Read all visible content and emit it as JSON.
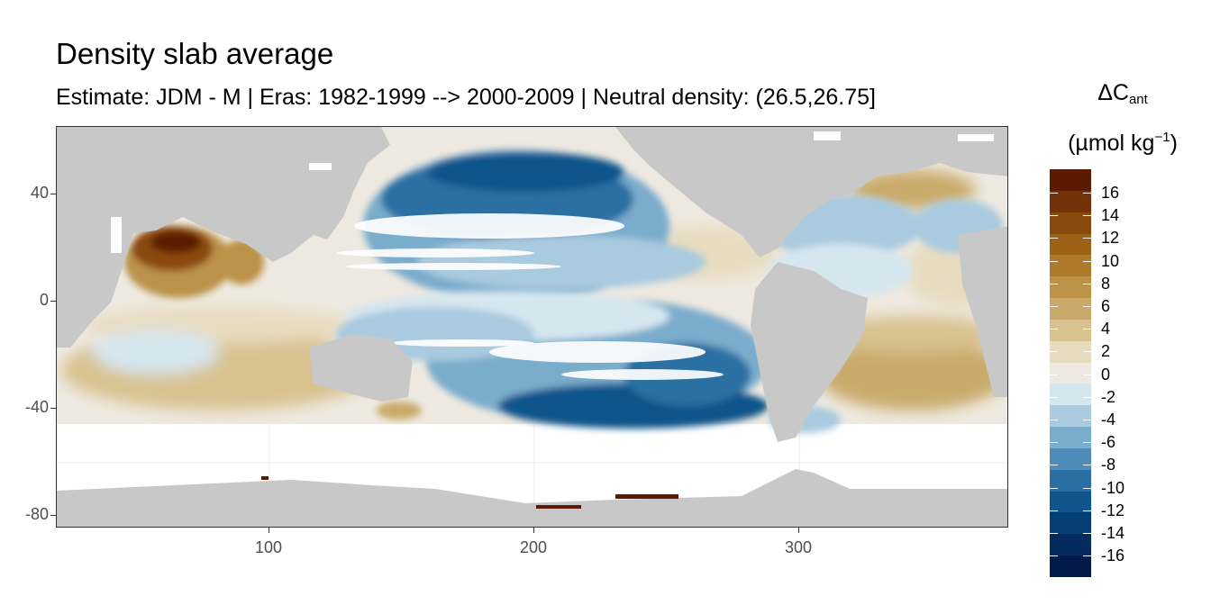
{
  "title": "Density slab average",
  "subtitle": "Estimate: JDM - M | Eras: 1982-1999 --> 2000-2009 | Neutral density: (26.5,26.75]",
  "axes": {
    "x_ticks": [
      "100",
      "200",
      "300"
    ],
    "y_ticks": [
      "40",
      "0",
      "-40",
      "-80"
    ]
  },
  "legend": {
    "title_symbol": "ΔC",
    "title_subscript": "ant",
    "unit_main": "(µmol kg",
    "unit_exponent": "−1",
    "unit_close": ")",
    "labels": [
      "16",
      "14",
      "12",
      "10",
      "8",
      "6",
      "4",
      "2",
      "0",
      "-2",
      "-4",
      "-6",
      "-8",
      "-10",
      "-12",
      "-14",
      "-16"
    ],
    "colors": [
      "#5c1a05",
      "#733208",
      "#8a4a0d",
      "#9e6216",
      "#ad7a2b",
      "#bb9248",
      "#c9aa6a",
      "#d8c290",
      "#e8dcc0",
      "#eee9e0",
      "#d6e6ef",
      "#a9cadf",
      "#7aaccc",
      "#4d8cb8",
      "#2a6fa3",
      "#0f548c",
      "#063e76",
      "#042a5e",
      "#021a48"
    ]
  },
  "map_colors": {
    "land": "#c8c8c8",
    "missing": "#ffffff",
    "grid": "#ebebeb"
  }
}
